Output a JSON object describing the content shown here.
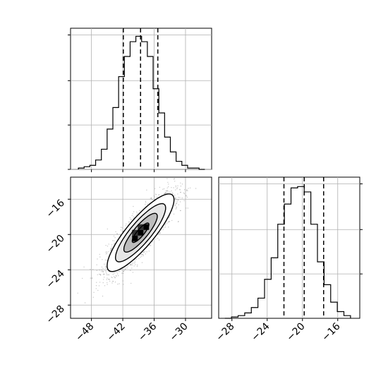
{
  "chart_data": {
    "type": "corner",
    "parameters": [
      "x",
      "y"
    ],
    "hist_x": {
      "type": "histogram",
      "bin_edges": [
        -50.5,
        -49.4,
        -48.3,
        -47.2,
        -46.1,
        -45.0,
        -43.9,
        -42.8,
        -41.7,
        -40.6,
        -39.5,
        -38.4,
        -37.3,
        -36.2,
        -35.1,
        -34.0,
        -32.9,
        -31.8,
        -30.7,
        -29.6,
        -28.5,
        -27.4,
        -26.3
      ],
      "counts": [
        0.01,
        0.02,
        0.03,
        0.07,
        0.15,
        0.3,
        0.46,
        0.69,
        0.84,
        0.95,
        0.99,
        0.95,
        0.84,
        0.6,
        0.42,
        0.24,
        0.13,
        0.06,
        0.03,
        0.01,
        0.01,
        0.0
      ],
      "quantiles": [
        -41.9,
        -38.6,
        -35.3
      ],
      "xlim": [
        -52,
        -25
      ],
      "ylim": [
        0,
        1.05
      ]
    },
    "hist_y": {
      "type": "histogram",
      "bin_edges": [
        -28.8,
        -28.05,
        -27.3,
        -26.55,
        -25.8,
        -25.05,
        -24.3,
        -23.55,
        -22.8,
        -22.05,
        -21.3,
        -20.55,
        -19.8,
        -19.05,
        -18.3,
        -17.55,
        -16.8,
        -16.05,
        -15.3,
        -14.55
      ],
      "counts": [
        0.0,
        0.01,
        0.02,
        0.04,
        0.08,
        0.15,
        0.29,
        0.45,
        0.7,
        0.85,
        0.97,
        0.98,
        0.94,
        0.7,
        0.42,
        0.25,
        0.12,
        0.05,
        0.02
      ],
      "quantiles": [
        -22.1,
        -19.8,
        -17.6
      ],
      "xlim": [
        -29.5,
        -13.5
      ],
      "ylim": [
        0,
        1.05
      ]
    },
    "scatter_xy": {
      "type": "density_contour",
      "xlim": [
        -52,
        -25
      ],
      "ylim": [
        -29.5,
        -13.5
      ],
      "center": [
        -38.6,
        -19.8
      ],
      "std": [
        3.2,
        2.2
      ],
      "correlation": 0.85,
      "contour_levels_sigma": [
        0.5,
        1.0,
        1.5,
        2.0
      ],
      "x_ticks": [
        -48,
        -42,
        -36,
        -30
      ],
      "y_ticks": [
        -16,
        -20,
        -24,
        -28
      ]
    },
    "hist_y_ticks": [
      -28,
      -24,
      -20,
      -16
    ],
    "tick_labels": {
      "x_ticks": [
        "−48",
        "−42",
        "−36",
        "−30"
      ],
      "y_ticks": [
        "−16",
        "−20",
        "−24",
        "−28"
      ],
      "hist_y_ticks": [
        "−28",
        "−24",
        "−20",
        "−16"
      ]
    },
    "grid": true
  }
}
